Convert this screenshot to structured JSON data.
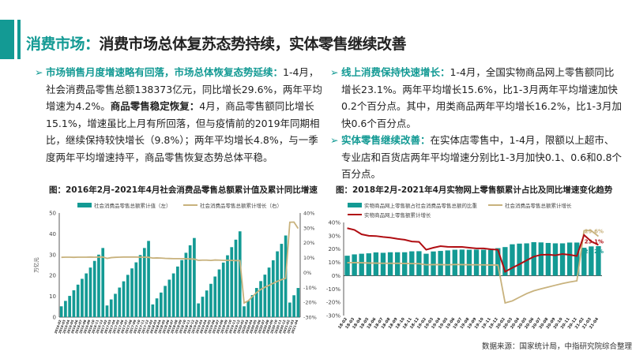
{
  "header": {
    "title_prefix": "消费市场：",
    "title_main": "消费市场总体复苏态势持续，实体零售继续改善"
  },
  "colors": {
    "accent": "#139a94",
    "bar": "#139a94",
    "retail_line": "#c8b27d",
    "online_line": "#b00d12"
  },
  "left_text": {
    "heading": "市场销售月度增速略有回落，市场总体恢复态势延续：",
    "body1": "1-4月，社会消费品零售总额138373亿元，同比增长29.6%，两年平均增速为4.2%。",
    "heading2": "商品零售稳定恢复：",
    "body2": "4月，商品零售额同比增长15.1%，增速虽比上月有所回落，但与疫情前的2019年同期相比，继续保持较快增长（9.8%）；两年平均增长4.8%，与一季度两年平均增速持平，商品零售恢复态势总体平稳。"
  },
  "right_text": {
    "heading": "线上消费保持快速增长：",
    "body1": "1-4月，全国实物商品网上零售额同比增长23.1%。两年平均增长15.6%，比1-3月两年平均增速加快0.2个百分点。其中，用类商品两年平均增长16.2%，比1-3月加快0.6个百分点。",
    "heading2": "实体零售继续改善：",
    "body2": "在实体店零售中，1-4月，限额以上超市、专业店和百货店两年平均增速分别比1-3月加快0.1、0.6和0.8个百分点。"
  },
  "source": "数据来源：国家统计局，中指研究院综合整理",
  "chart_data": [
    {
      "type": "bar+line",
      "title": "图：2016年2月-2021年4月社会消费品零售总额累计值及累计同比增速",
      "ylabel": "万亿元",
      "ylim": [
        0,
        50
      ],
      "yticks": [
        "0",
        "10",
        "20",
        "30",
        "40",
        "50"
      ],
      "y2lim": [
        -30,
        40
      ],
      "y2ticks": [
        "-30%",
        "-20%",
        "-10%",
        "0%",
        "10%",
        "20%",
        "30%",
        "40%"
      ],
      "legend_position": "top",
      "categories": [
        "2016-02",
        "2016-03",
        "2016-04",
        "2016-05",
        "2016-06",
        "2016-07",
        "2016-08",
        "2016-09",
        "2016-10",
        "2016-11",
        "2016-12",
        "2017-02",
        "2017-03",
        "2017-04",
        "2017-05",
        "2017-06",
        "2017-07",
        "2017-08",
        "2017-09",
        "2017-10",
        "2017-11",
        "2017-12",
        "2018-02",
        "2018-03",
        "2018-04",
        "2018-05",
        "2018-06",
        "2018-07",
        "2018-08",
        "2018-09",
        "2018-10",
        "2018-11",
        "2018-12",
        "2019-02",
        "2019-03",
        "2019-04",
        "2019-05",
        "2019-06",
        "2019-07",
        "2019-08",
        "2019-09",
        "2019-10",
        "2019-11",
        "2019-12",
        "2020-02",
        "2020-03",
        "2020-04",
        "2020-05",
        "2020-06",
        "2020-07",
        "2020-08",
        "2020-09",
        "2020-10",
        "2020-11",
        "2020-12",
        "2021-02",
        "2021-03",
        "2021-04"
      ],
      "series": [
        {
          "name": "社会消费品零售总额累计值（左）",
          "kind": "bar",
          "axis": "left",
          "values": [
            5.2,
            7.8,
            10.2,
            12.9,
            15.6,
            18.4,
            21.0,
            23.8,
            27.0,
            30.0,
            33.2,
            5.6,
            8.5,
            11.2,
            14.2,
            17.2,
            20.3,
            23.4,
            26.3,
            29.8,
            33.2,
            36.6,
            6.1,
            9.0,
            11.8,
            15.0,
            18.0,
            21.0,
            24.3,
            27.4,
            30.9,
            34.5,
            38.0,
            6.6,
            9.8,
            12.8,
            16.0,
            19.5,
            22.9,
            26.2,
            29.7,
            33.6,
            37.2,
            41.2,
            5.2,
            7.9,
            10.6,
            14.0,
            17.3,
            20.4,
            23.8,
            27.3,
            31.6,
            35.2,
            39.2,
            7.0,
            10.5,
            14.0
          ]
        },
        {
          "name": "社会消费品零售总额累计增长（右）",
          "kind": "line",
          "axis": "right",
          "values": [
            10.2,
            10.3,
            10.3,
            10.2,
            10.3,
            10.3,
            10.3,
            10.4,
            10.3,
            10.4,
            10.4,
            9.5,
            10.0,
            10.2,
            10.3,
            10.4,
            10.4,
            10.4,
            10.4,
            10.3,
            10.3,
            10.2,
            9.7,
            9.8,
            9.7,
            9.5,
            9.4,
            9.3,
            9.3,
            9.3,
            9.2,
            9.1,
            9.0,
            8.2,
            8.3,
            8.3,
            8.1,
            8.4,
            8.3,
            8.2,
            8.2,
            8.1,
            8.0,
            8.0,
            -20.5,
            -19.0,
            -16.2,
            -13.5,
            -11.4,
            -9.9,
            -8.6,
            -7.2,
            -5.9,
            -4.8,
            -3.9,
            33.8,
            33.9,
            29.6
          ]
        }
      ]
    },
    {
      "type": "bar+line",
      "title": "图：2018年2月-2021年4月实物网上零售额累计占比及同比增速变化趋势",
      "ylim": [
        -30,
        40
      ],
      "yticks": [
        "-30%",
        "-20%",
        "-10%",
        "0%",
        "10%",
        "20%",
        "30%",
        "40%"
      ],
      "legend_position": "top",
      "categories": [
        "18-02",
        "18-03",
        "18-04",
        "18-05",
        "18-06",
        "18-07",
        "18-08",
        "18-09",
        "18-10",
        "18-11",
        "18-12",
        "19-02",
        "19-03",
        "19-04",
        "19-05",
        "19-06",
        "19-07",
        "19-08",
        "19-09",
        "19-10",
        "19-11",
        "19-12",
        "20-02",
        "20-03",
        "20-04",
        "20-05",
        "20-06",
        "20-07",
        "20-08",
        "20-09",
        "20-10",
        "20-11",
        "20-12",
        "21-02",
        "21-03",
        "21-04"
      ],
      "series": [
        {
          "name": "实物商品网上零售额占社会消费品零售总额的比重",
          "kind": "bar",
          "values": [
            15.0,
            16.0,
            16.5,
            16.8,
            17.5,
            17.2,
            17.6,
            17.6,
            17.6,
            18.3,
            18.4,
            16.5,
            18.2,
            18.6,
            19.0,
            19.5,
            19.6,
            19.5,
            19.6,
            19.5,
            19.4,
            20.7,
            21.5,
            23.6,
            24.1,
            24.3,
            25.2,
            25.0,
            24.6,
            24.3,
            24.3,
            24.9,
            24.9,
            21.0,
            22.0,
            22.2
          ],
          "end_label": "22.2%"
        },
        {
          "name": "社会消费品零售总额累计增长",
          "kind": "line",
          "values": [
            9.7,
            9.8,
            9.7,
            9.5,
            9.4,
            9.3,
            9.3,
            9.3,
            9.2,
            9.1,
            9.0,
            8.2,
            8.3,
            8.3,
            8.1,
            8.4,
            8.3,
            8.2,
            8.2,
            8.1,
            8.0,
            8.0,
            -20.5,
            -19.0,
            -16.2,
            -13.5,
            -11.4,
            -9.9,
            -8.6,
            -7.2,
            -5.9,
            -4.8,
            -3.9,
            33.8,
            33.9,
            29.6
          ],
          "end_label": "29.6%"
        },
        {
          "name": "实物商品网上零售额累计增长",
          "kind": "line",
          "values": [
            35.7,
            34.4,
            31.1,
            30.0,
            29.8,
            29.1,
            28.6,
            27.7,
            27.0,
            25.7,
            25.4,
            19.5,
            21.0,
            22.2,
            21.7,
            21.6,
            21.6,
            21.0,
            20.5,
            20.5,
            19.8,
            19.5,
            3.0,
            5.9,
            8.6,
            11.5,
            14.3,
            15.7,
            15.8,
            15.3,
            16.3,
            15.7,
            14.8,
            30.6,
            25.8,
            23.1
          ],
          "end_label": "23.1%"
        }
      ]
    }
  ]
}
